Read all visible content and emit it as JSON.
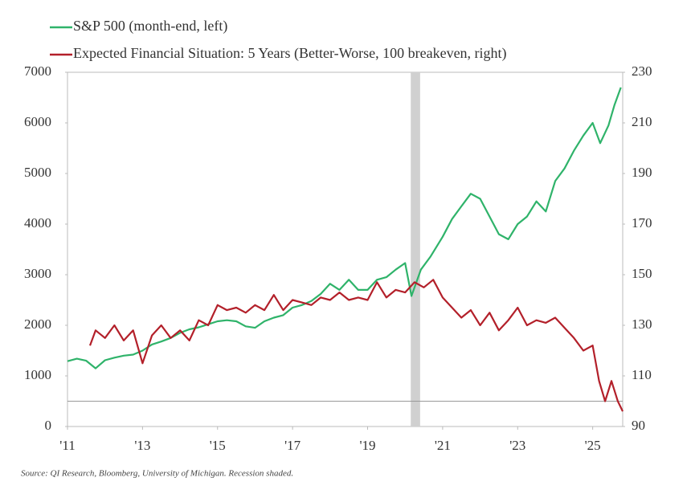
{
  "chart_data": {
    "type": "line",
    "source": "Source: QI Research, Bloomberg, University of Michigan. Recession shaded.",
    "xlim": [
      2011,
      2025.8
    ],
    "xticks": [
      {
        "value": 2011,
        "label": "'11"
      },
      {
        "value": 2013,
        "label": "'13"
      },
      {
        "value": 2015,
        "label": "'15"
      },
      {
        "value": 2017,
        "label": "'17"
      },
      {
        "value": 2019,
        "label": "'19"
      },
      {
        "value": 2021,
        "label": "'21"
      },
      {
        "value": 2023,
        "label": "'23"
      },
      {
        "value": 2025,
        "label": "'25"
      }
    ],
    "ylim": [
      0,
      7000
    ],
    "yticks": [
      0,
      1000,
      2000,
      3000,
      4000,
      5000,
      6000,
      7000
    ],
    "y2lim": [
      90,
      230
    ],
    "y2ticks": [
      90,
      110,
      130,
      150,
      170,
      190,
      210,
      230
    ],
    "shaded_x": [
      2020.15,
      2020.4
    ],
    "reference_y2": 100,
    "series": [
      {
        "name": "S&P 500 (month-end, left)",
        "color": "#2fb36a",
        "x": [
          2011.0,
          2011.25,
          2011.5,
          2011.75,
          2012.0,
          2012.25,
          2012.5,
          2012.75,
          2013.0,
          2013.25,
          2013.5,
          2013.75,
          2014.0,
          2014.25,
          2014.5,
          2014.75,
          2015.0,
          2015.25,
          2015.5,
          2015.75,
          2016.0,
          2016.25,
          2016.5,
          2016.75,
          2017.0,
          2017.25,
          2017.5,
          2017.75,
          2018.0,
          2018.25,
          2018.5,
          2018.75,
          2019.0,
          2019.25,
          2019.5,
          2019.75,
          2020.0,
          2020.17,
          2020.42,
          2020.67,
          2021.0,
          2021.25,
          2021.5,
          2021.75,
          2022.0,
          2022.25,
          2022.5,
          2022.75,
          2023.0,
          2023.25,
          2023.5,
          2023.75,
          2024.0,
          2024.25,
          2024.5,
          2024.75,
          2025.0,
          2025.2,
          2025.42,
          2025.58,
          2025.75
        ],
        "values": [
          1290,
          1340,
          1300,
          1150,
          1310,
          1360,
          1400,
          1420,
          1500,
          1620,
          1680,
          1750,
          1850,
          1920,
          1960,
          2020,
          2080,
          2100,
          2080,
          1980,
          1950,
          2080,
          2150,
          2200,
          2350,
          2400,
          2480,
          2620,
          2820,
          2700,
          2900,
          2700,
          2700,
          2900,
          2950,
          3100,
          3230,
          2580,
          3100,
          3350,
          3750,
          4100,
          4350,
          4600,
          4500,
          4150,
          3800,
          3700,
          4000,
          4150,
          4450,
          4250,
          4850,
          5100,
          5450,
          5750,
          6000,
          5600,
          5950,
          6350,
          6700
        ]
      },
      {
        "name": "Expected Financial Situation: 5 Years (Better-Worse, 100 breakeven, right)",
        "color": "#b3202a",
        "axis": "y2",
        "x": [
          2011.6,
          2011.75,
          2012.0,
          2012.25,
          2012.5,
          2012.75,
          2013.0,
          2013.25,
          2013.5,
          2013.75,
          2014.0,
          2014.25,
          2014.5,
          2014.75,
          2015.0,
          2015.25,
          2015.5,
          2015.75,
          2016.0,
          2016.25,
          2016.5,
          2016.75,
          2017.0,
          2017.25,
          2017.5,
          2017.75,
          2018.0,
          2018.25,
          2018.5,
          2018.75,
          2019.0,
          2019.25,
          2019.5,
          2019.75,
          2020.0,
          2020.25,
          2020.5,
          2020.75,
          2021.0,
          2021.25,
          2021.5,
          2021.75,
          2022.0,
          2022.25,
          2022.5,
          2022.75,
          2023.0,
          2023.25,
          2023.5,
          2023.75,
          2024.0,
          2024.25,
          2024.5,
          2024.75,
          2025.0,
          2025.17,
          2025.33,
          2025.5,
          2025.67,
          2025.8
        ],
        "values": [
          122,
          128,
          125,
          130,
          124,
          128,
          115,
          126,
          130,
          125,
          128,
          124,
          132,
          130,
          138,
          136,
          137,
          135,
          138,
          136,
          142,
          136,
          140,
          139,
          138,
          141,
          140,
          143,
          140,
          141,
          140,
          147,
          141,
          144,
          143,
          147,
          145,
          148,
          141,
          137,
          133,
          136,
          130,
          135,
          128,
          132,
          137,
          130,
          132,
          131,
          133,
          129,
          125,
          120,
          122,
          108,
          100,
          108,
          100,
          96
        ]
      }
    ]
  }
}
